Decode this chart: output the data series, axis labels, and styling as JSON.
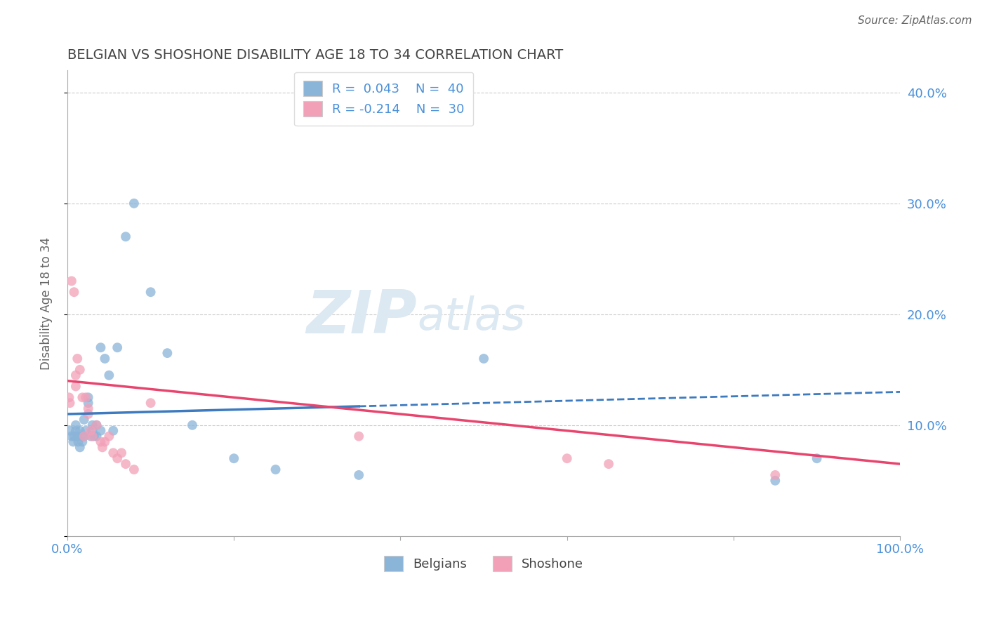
{
  "title": "BELGIAN VS SHOSHONE DISABILITY AGE 18 TO 34 CORRELATION CHART",
  "source": "Source: ZipAtlas.com",
  "ylabel": "Disability Age 18 to 34",
  "xlim": [
    0,
    100
  ],
  "ylim": [
    0,
    42
  ],
  "blue_color": "#8ab4d8",
  "pink_color": "#f2a0b8",
  "blue_line_color": "#3d7abf",
  "pink_line_color": "#e8456e",
  "label_color": "#4a90d9",
  "title_color": "#444444",
  "grid_color": "#cccccc",
  "watermark_color": "#dce8f2",
  "r_blue": 0.043,
  "n_blue": 40,
  "r_pink": -0.214,
  "n_pink": 30,
  "belgians_x": [
    0.3,
    0.5,
    0.7,
    0.8,
    1.0,
    1.0,
    1.2,
    1.3,
    1.5,
    1.5,
    1.7,
    1.8,
    2.0,
    2.0,
    2.2,
    2.5,
    2.5,
    2.8,
    3.0,
    3.0,
    3.2,
    3.5,
    3.5,
    4.0,
    4.0,
    4.5,
    5.0,
    5.5,
    6.0,
    7.0,
    8.0,
    10.0,
    12.0,
    15.0,
    20.0,
    25.0,
    35.0,
    50.0,
    85.0,
    90.0
  ],
  "belgians_y": [
    9.5,
    9.0,
    8.5,
    9.0,
    10.0,
    9.5,
    9.0,
    8.5,
    9.5,
    8.0,
    9.0,
    8.5,
    9.0,
    10.5,
    9.5,
    12.5,
    12.0,
    9.0,
    10.0,
    9.5,
    9.0,
    10.0,
    9.0,
    17.0,
    9.5,
    16.0,
    14.5,
    9.5,
    17.0,
    27.0,
    30.0,
    22.0,
    16.5,
    10.0,
    7.0,
    6.0,
    5.5,
    16.0,
    5.0,
    7.0
  ],
  "shoshone_x": [
    0.2,
    0.3,
    0.5,
    0.8,
    1.0,
    1.0,
    1.2,
    1.5,
    1.8,
    2.0,
    2.2,
    2.5,
    2.5,
    2.8,
    3.0,
    3.5,
    4.0,
    4.2,
    4.5,
    5.0,
    5.5,
    6.0,
    6.5,
    7.0,
    8.0,
    10.0,
    35.0,
    60.0,
    65.0,
    85.0
  ],
  "shoshone_y": [
    12.5,
    12.0,
    23.0,
    22.0,
    14.5,
    13.5,
    16.0,
    15.0,
    12.5,
    9.0,
    12.5,
    11.5,
    11.0,
    9.5,
    9.0,
    10.0,
    8.5,
    8.0,
    8.5,
    9.0,
    7.5,
    7.0,
    7.5,
    6.5,
    6.0,
    12.0,
    9.0,
    7.0,
    6.5,
    5.5
  ],
  "marker_size": 100,
  "figsize": [
    14.06,
    8.92
  ],
  "dpi": 100
}
